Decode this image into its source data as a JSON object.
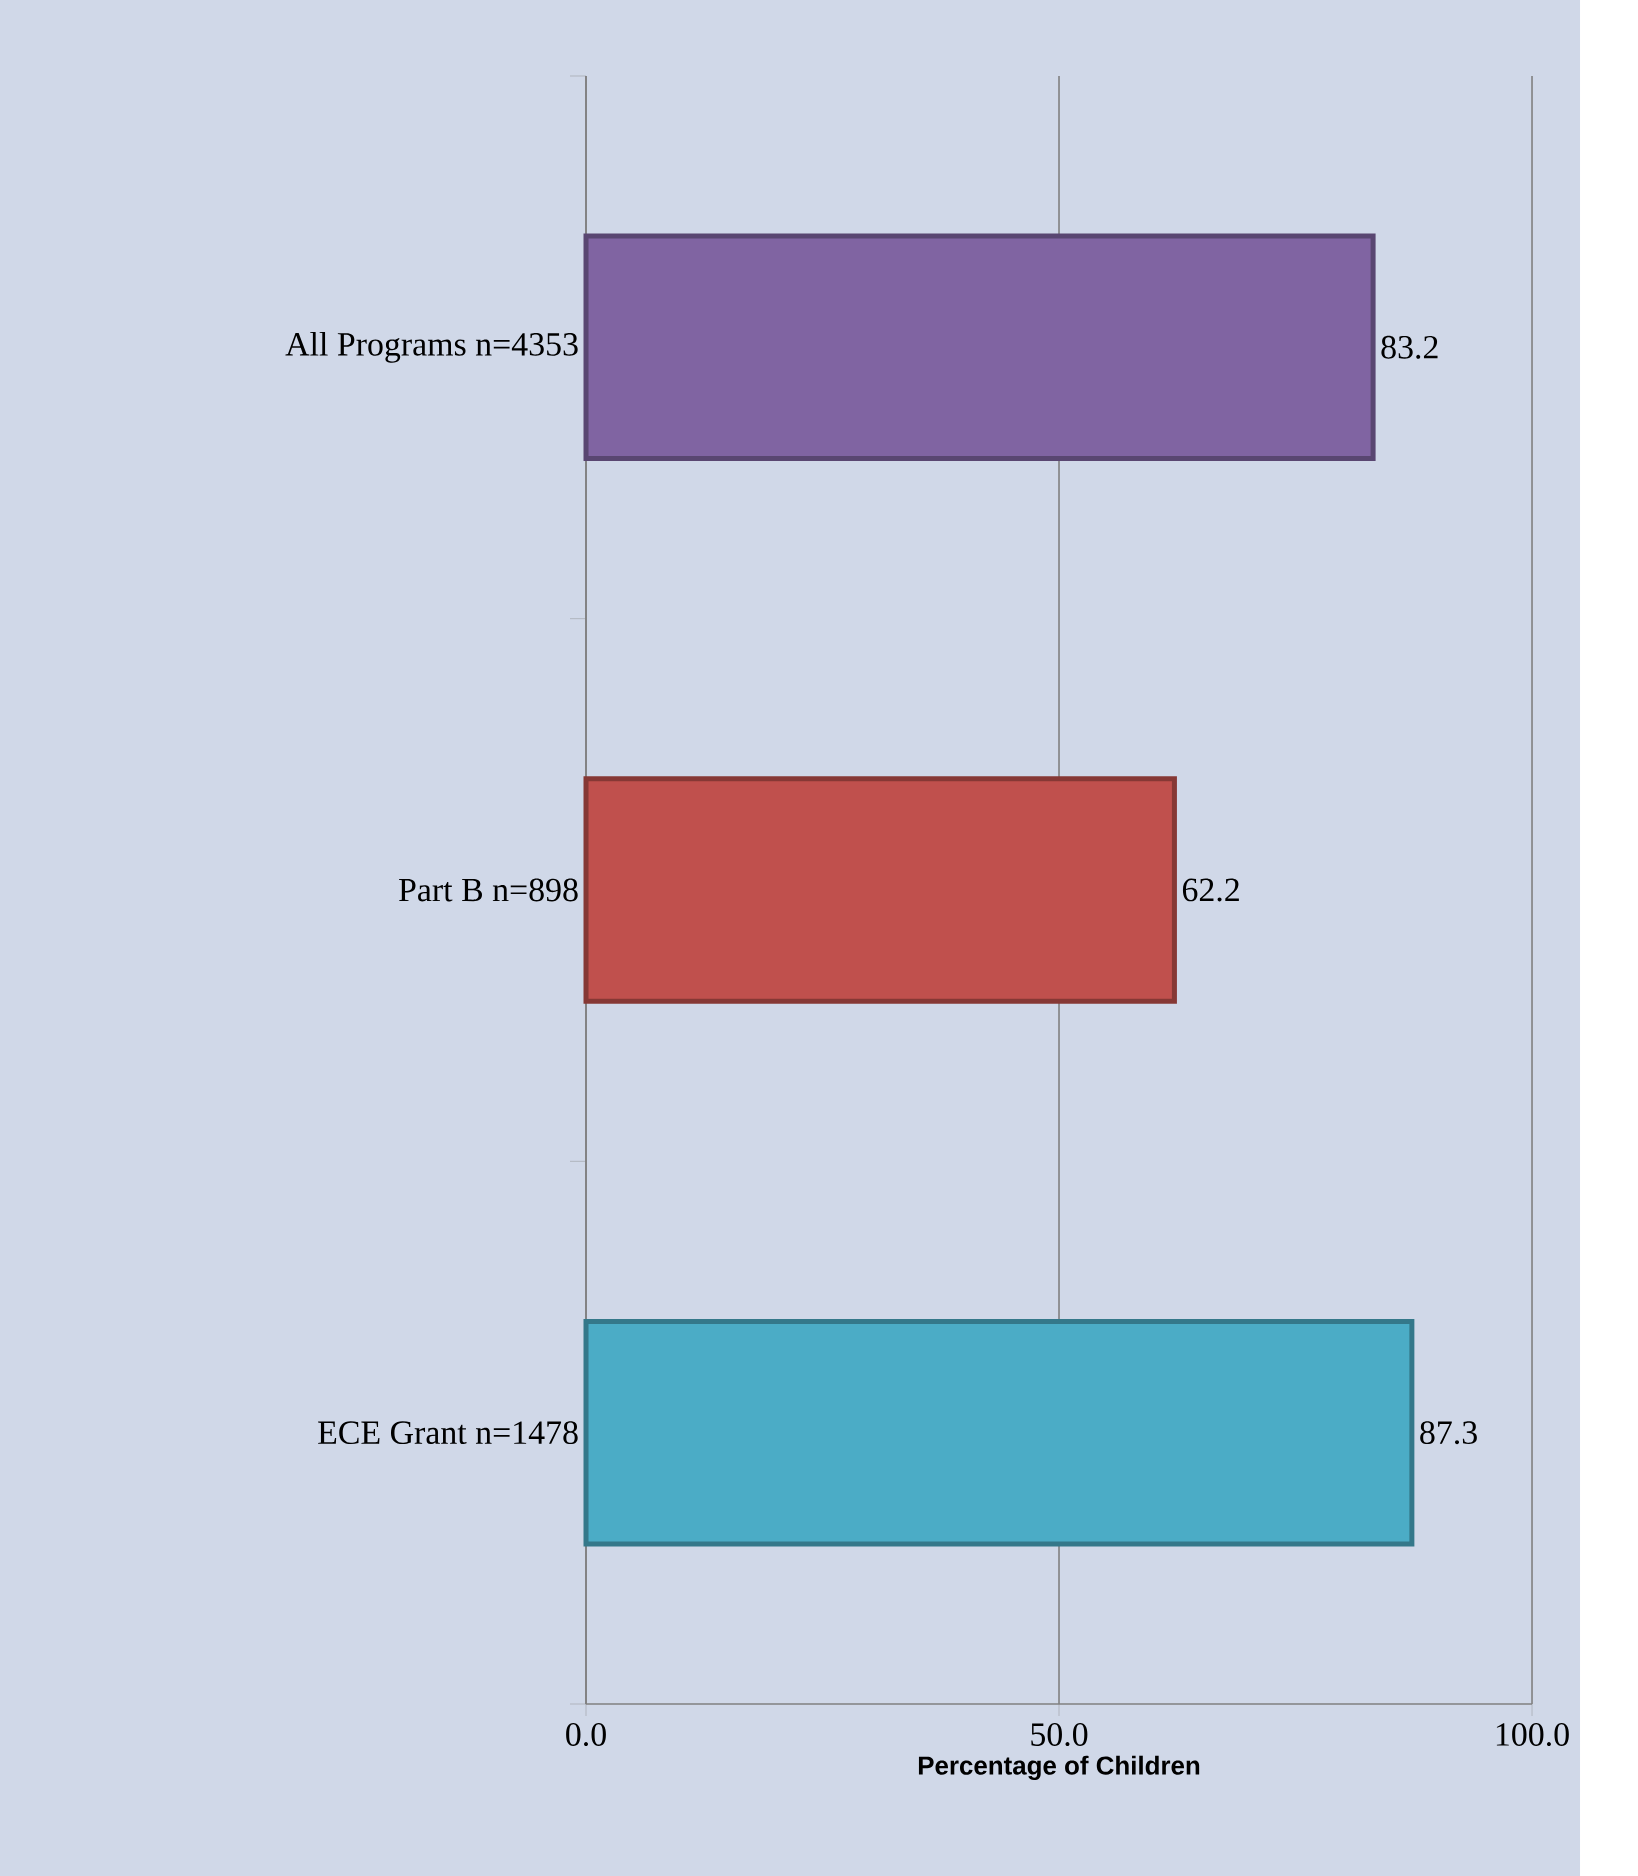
{
  "chart_data": {
    "type": "bar",
    "orientation": "horizontal",
    "xlabel": "Percentage of Children",
    "categories": [
      "All Programs n=4353",
      "Part B n=898",
      "ECE Grant n=1478"
    ],
    "values": [
      83.2,
      62.2,
      87.3
    ],
    "colors": [
      "#8064a2",
      "#c0504d",
      "#4bacc6"
    ],
    "xlim": [
      0,
      100
    ],
    "xticks": [
      {
        "value": 0,
        "label": "0.0"
      },
      {
        "value": 50,
        "label": "50.0"
      },
      {
        "value": 100,
        "label": "100.0"
      }
    ],
    "grid": "x",
    "data_labels": true
  }
}
